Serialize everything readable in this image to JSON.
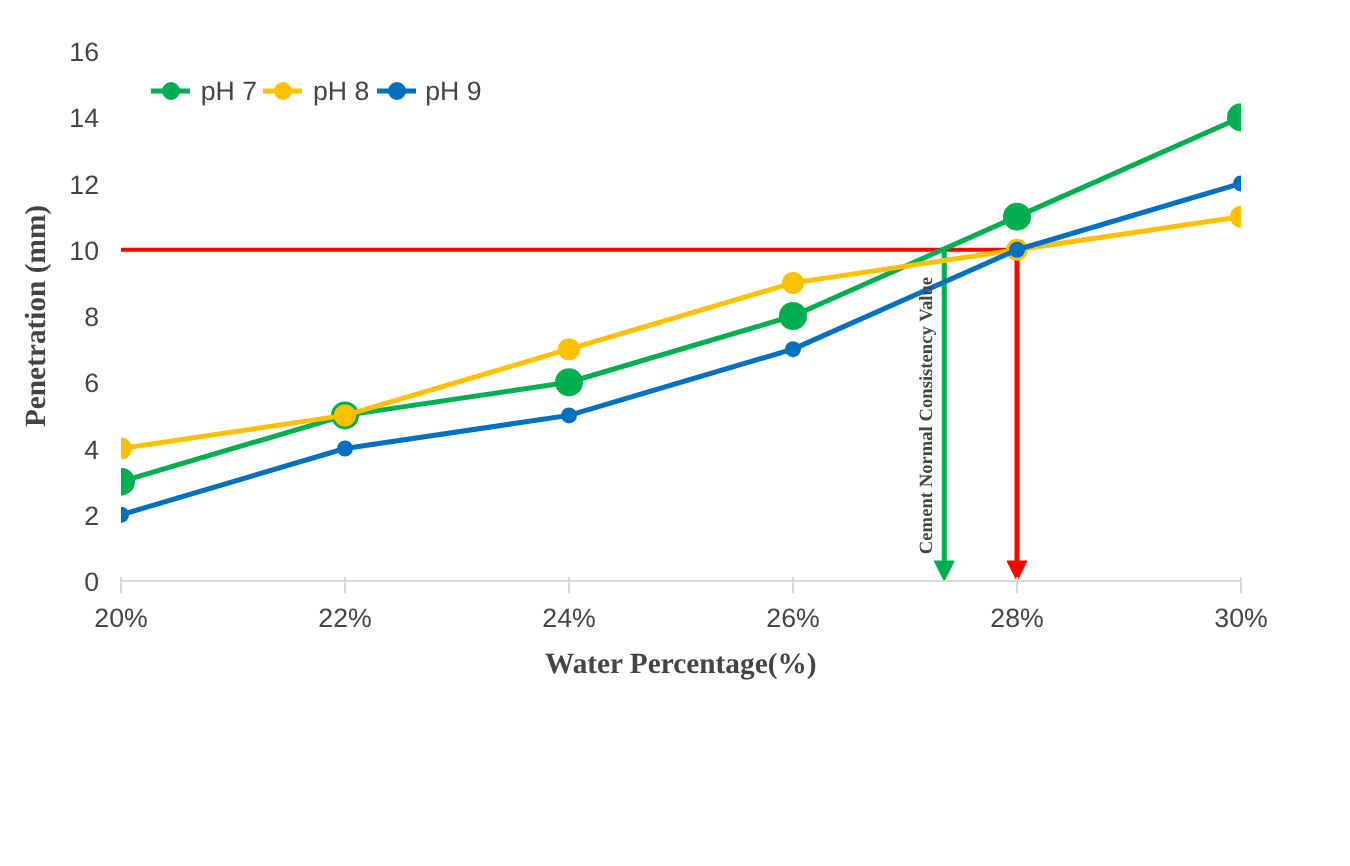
{
  "chart_data": {
    "type": "line",
    "xlabel": "Water Percentage(%)",
    "ylabel": "Penetration (mm)",
    "x": [
      20,
      22,
      24,
      26,
      28,
      30
    ],
    "xlim": [
      20,
      30
    ],
    "xticks": [
      {
        "value": 20,
        "label": "20%"
      },
      {
        "value": 22,
        "label": "22%"
      },
      {
        "value": 24,
        "label": "24%"
      },
      {
        "value": 26,
        "label": "26%"
      },
      {
        "value": 28,
        "label": "28%"
      },
      {
        "value": 30,
        "label": "30%"
      }
    ],
    "ylim": [
      0,
      16
    ],
    "yticks": [
      0,
      2,
      4,
      6,
      8,
      10,
      12,
      14,
      16
    ],
    "series": [
      {
        "name": "pH 7",
        "color": "#00b050",
        "values": [
          3,
          5,
          6,
          8,
          11,
          14
        ]
      },
      {
        "name": "pH 8",
        "color": "#ffc000",
        "values": [
          4,
          5,
          7,
          9,
          10,
          11
        ]
      },
      {
        "name": "pH 9",
        "color": "#0070c0",
        "values": [
          2,
          4,
          5,
          7,
          10,
          12
        ]
      }
    ],
    "ref_lines": [
      {
        "axis": "y",
        "value": 10,
        "color": "#ff0000"
      },
      {
        "axis": "x",
        "value": 27.35,
        "color": "#00b050"
      },
      {
        "axis": "x",
        "value": 28,
        "color": "#ff0000"
      }
    ],
    "annotations": [
      "Cement Normal Consistency Value"
    ],
    "marker": "circle",
    "line_style": "solid",
    "legend": "top left",
    "grid": false
  }
}
